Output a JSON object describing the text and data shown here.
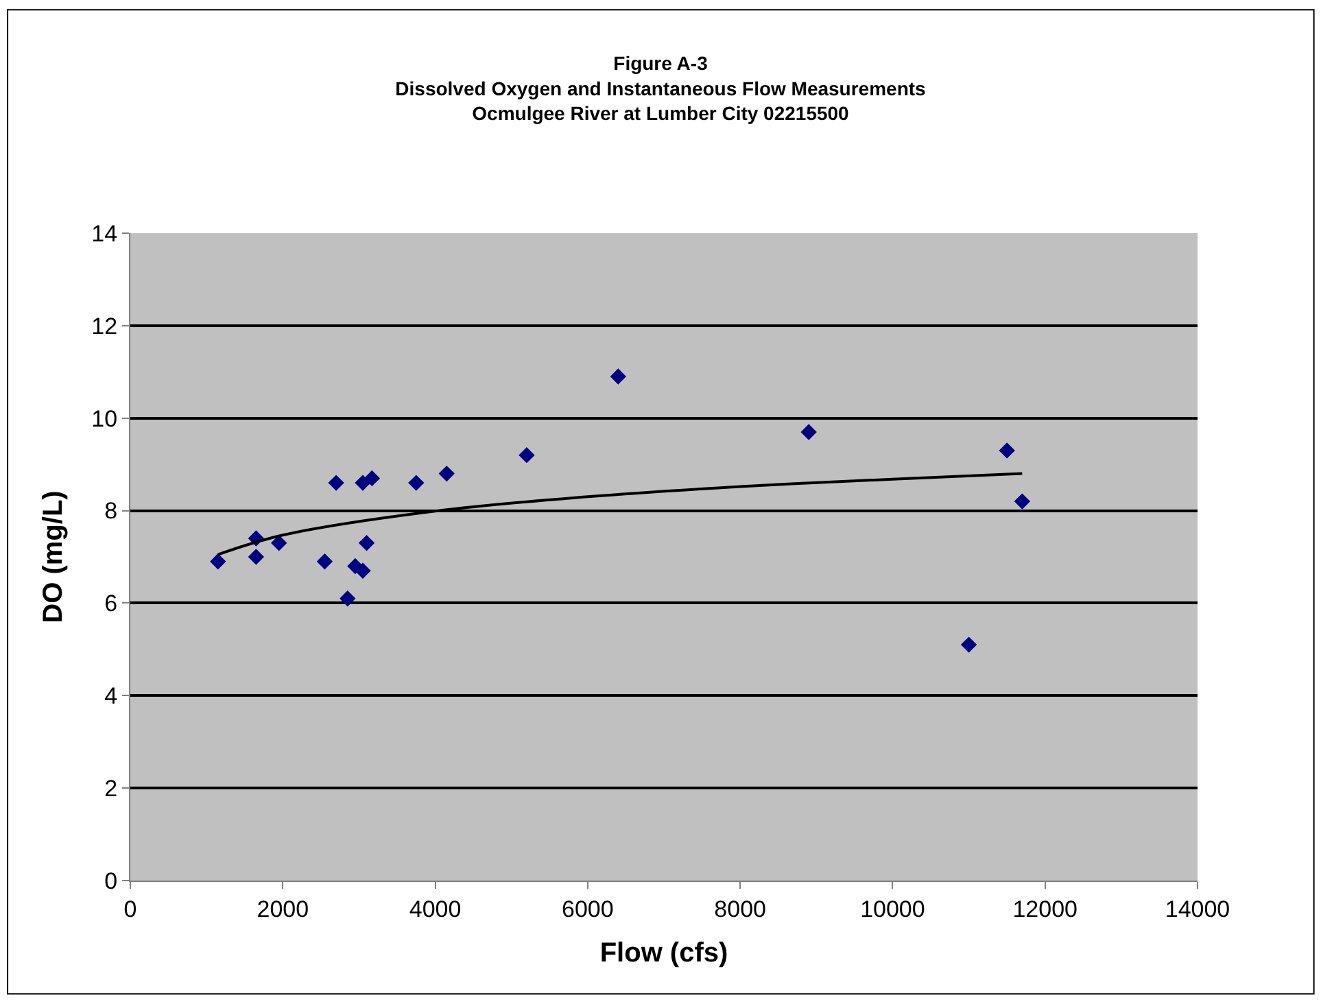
{
  "chart_data": {
    "type": "scatter",
    "title": "Figure A-3\nDissolved Oxygen and Instantaneous Flow Measurements\nOcmulgee River at Lumber City 02215500",
    "xlabel": "Flow (cfs)",
    "ylabel": "DO (mg/L)",
    "xlim": [
      0,
      14000
    ],
    "ylim": [
      0,
      14
    ],
    "xticks": [
      0,
      2000,
      4000,
      6000,
      8000,
      10000,
      12000,
      14000
    ],
    "yticks": [
      0,
      2,
      4,
      6,
      8,
      10,
      12,
      14
    ],
    "grid": "y",
    "marker": "diamond",
    "series": [
      {
        "color": "#000080",
        "x": [
          1150,
          1650,
          1650,
          1950,
          2550,
          2700,
          2850,
          2950,
          3050,
          3050,
          3100,
          3170,
          3750,
          4150,
          5200,
          6400,
          8900,
          11000,
          11500,
          11700
        ],
        "values": [
          6.9,
          7.4,
          7.0,
          7.3,
          6.9,
          8.6,
          6.1,
          6.8,
          6.7,
          8.6,
          7.3,
          8.7,
          8.6,
          8.8,
          9.2,
          10.9,
          9.7,
          5.1,
          9.3,
          8.2
        ]
      },
      {
        "type": "line",
        "marker": "none",
        "color": "#000000",
        "x": [
          1150,
          2000,
          4000,
          6000,
          8000,
          10000,
          11700
        ],
        "values": [
          7.05,
          7.47,
          7.99,
          8.3,
          8.52,
          8.68,
          8.8
        ]
      }
    ]
  }
}
